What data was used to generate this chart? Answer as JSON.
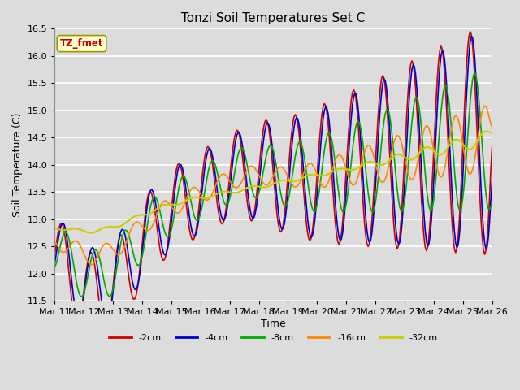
{
  "title": "Tonzi Soil Temperatures Set C",
  "xlabel": "Time",
  "ylabel": "Soil Temperature (C)",
  "ylim": [
    11.5,
    16.5
  ],
  "annotation": "TZ_fmet",
  "annotation_color": "#cc0000",
  "annotation_bg": "#ffffcc",
  "annotation_edge": "#999900",
  "bg_color": "#dcdcdc",
  "plot_bg": "#dcdcdc",
  "grid_color": "#ffffff",
  "series_order": [
    "-2cm",
    "-4cm",
    "-8cm",
    "-16cm",
    "-32cm"
  ],
  "series": {
    "-2cm": {
      "color": "#cc0000",
      "lw": 1.2
    },
    "-4cm": {
      "color": "#0000cc",
      "lw": 1.2
    },
    "-8cm": {
      "color": "#00aa00",
      "lw": 1.2
    },
    "-16cm": {
      "color": "#ff8800",
      "lw": 1.2
    },
    "-32cm": {
      "color": "#cccc00",
      "lw": 1.5
    }
  },
  "x_tick_labels": [
    "Mar 11",
    "Mar 12",
    "Mar 13",
    "Mar 14",
    "Mar 15",
    "Mar 16",
    "Mar 17",
    "Mar 18",
    "Mar 19",
    "Mar 20",
    "Mar 21",
    "Mar 22",
    "Mar 23",
    "Mar 24",
    "Mar 25",
    "Mar 26"
  ],
  "yticks": [
    11.5,
    12.0,
    12.5,
    13.0,
    13.5,
    14.0,
    14.5,
    15.0,
    15.5,
    16.0,
    16.5
  ],
  "figsize": [
    6.4,
    4.8
  ],
  "dpi": 100
}
